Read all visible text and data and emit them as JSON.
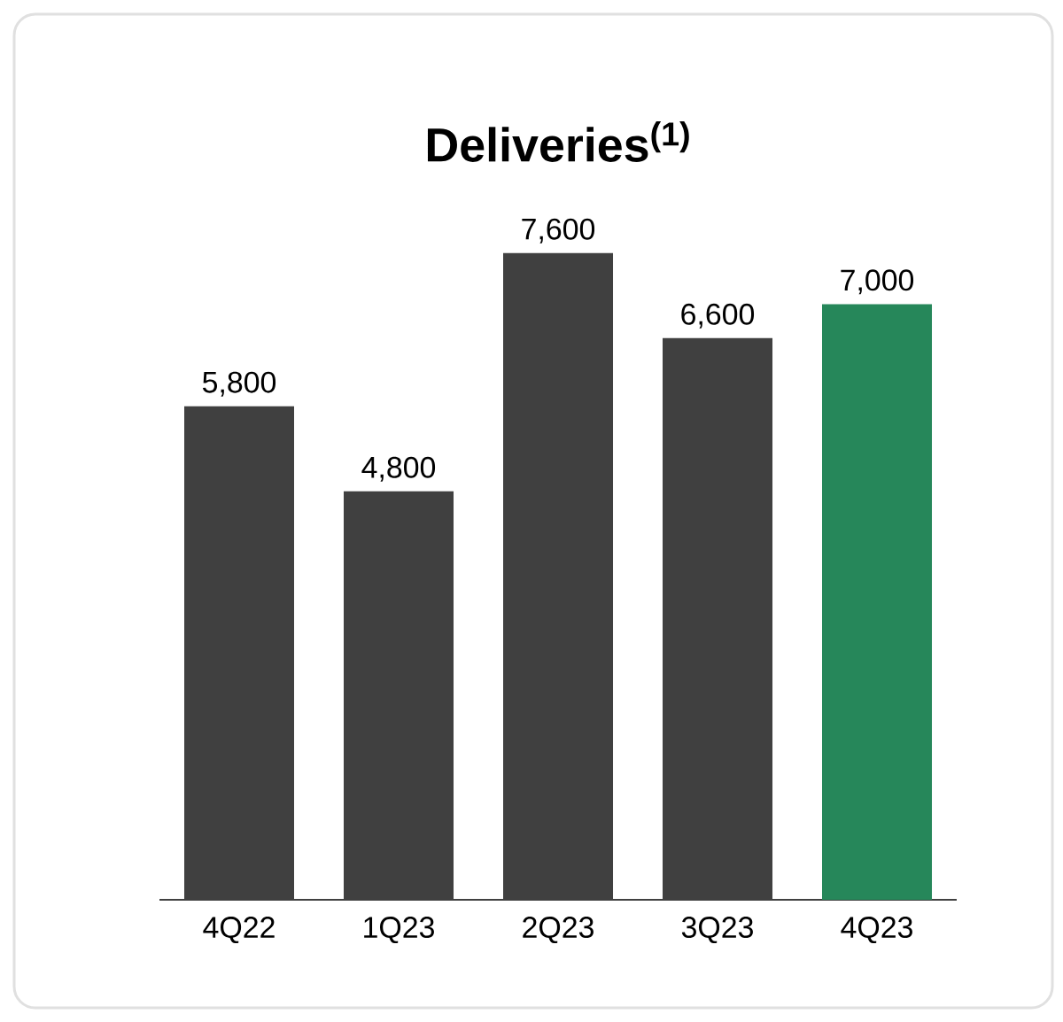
{
  "chart_data": {
    "type": "bar",
    "title": "Deliveries$^{(1)}$",
    "categories": [
      "4Q22",
      "1Q23",
      "2Q23",
      "3Q23",
      "4Q23"
    ],
    "values": [
      5800,
      4800,
      7600,
      6600,
      7000
    ],
    "value_labels": [
      "5,800",
      "4,800",
      "7,600",
      "6,600",
      "7,000"
    ],
    "colors": [
      "#404040",
      "#404040",
      "#404040",
      "#404040",
      "#26875a"
    ]
  }
}
